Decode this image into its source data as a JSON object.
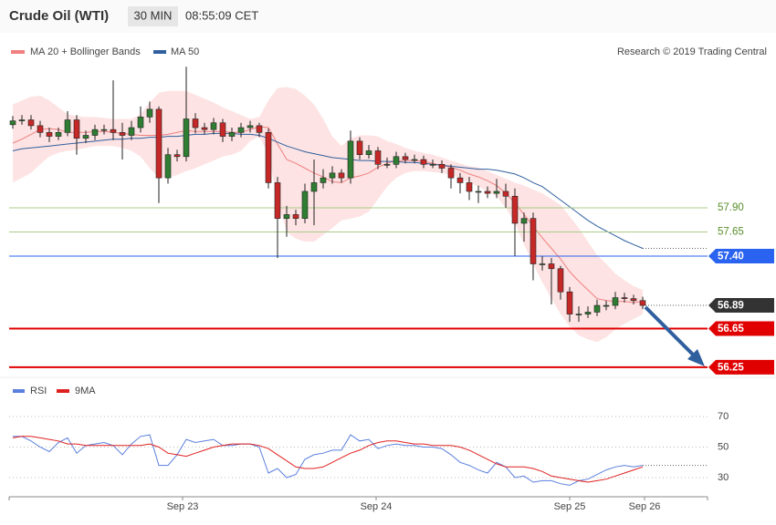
{
  "header": {
    "title": "Crude Oil (WTI)",
    "interval": "30 MIN",
    "time": "08:55:09 CET"
  },
  "chart_data": [
    {
      "type": "candlestick",
      "source": "Research © 2019 Trading Central",
      "up_color": "#2e7d32",
      "down_color": "#c62828",
      "xlim": [
        -0.4,
        76.1
      ],
      "ylim": [
        56.2,
        59.4
      ],
      "x": [
        0,
        1,
        2,
        3,
        4,
        5,
        6,
        7,
        8,
        9,
        10,
        11,
        12,
        13,
        14,
        15,
        16,
        17,
        18,
        19,
        20,
        21,
        22,
        23,
        24,
        25,
        26,
        27,
        28,
        29,
        30,
        31,
        32,
        33,
        34,
        35,
        36,
        37,
        38,
        39,
        40,
        41,
        42,
        43,
        44,
        45,
        46,
        47,
        48,
        49,
        50,
        51,
        52,
        53,
        54,
        55,
        56,
        57,
        58,
        59,
        60,
        61,
        62,
        63,
        64,
        65,
        66,
        67,
        68,
        69
      ],
      "open": [
        58.76,
        58.8,
        58.81,
        58.75,
        58.68,
        58.64,
        58.68,
        58.81,
        58.62,
        58.65,
        58.71,
        58.71,
        58.68,
        58.65,
        58.73,
        58.84,
        58.92,
        58.21,
        58.45,
        58.43,
        58.82,
        58.73,
        58.71,
        58.78,
        58.64,
        58.68,
        58.73,
        58.75,
        58.68,
        58.16,
        57.79,
        57.83,
        57.79,
        58.07,
        58.16,
        58.21,
        58.26,
        58.21,
        58.59,
        58.45,
        58.49,
        58.35,
        58.35,
        58.43,
        58.4,
        58.4,
        58.35,
        58.35,
        58.31,
        58.21,
        58.16,
        58.07,
        58.07,
        58.05,
        58.07,
        58.02,
        57.74,
        57.79,
        57.32,
        57.32,
        57.27,
        57.03,
        56.8,
        56.8,
        56.82,
        56.89,
        56.89,
        56.97,
        56.96,
        56.94
      ],
      "high": [
        58.85,
        58.86,
        58.86,
        58.8,
        58.73,
        58.73,
        58.9,
        58.86,
        58.7,
        58.76,
        58.76,
        59.22,
        58.78,
        58.8,
        58.95,
        59.0,
        58.95,
        58.52,
        58.5,
        59.36,
        58.88,
        58.78,
        58.83,
        58.82,
        58.73,
        58.78,
        58.8,
        58.78,
        58.72,
        58.22,
        57.92,
        57.88,
        58.15,
        58.4,
        58.3,
        58.33,
        58.3,
        58.7,
        58.63,
        58.55,
        58.53,
        58.42,
        58.48,
        58.47,
        58.45,
        58.44,
        58.4,
        58.39,
        58.35,
        58.26,
        58.22,
        58.13,
        58.12,
        58.2,
        58.15,
        58.1,
        57.85,
        57.85,
        57.4,
        57.38,
        57.3,
        57.08,
        56.88,
        56.88,
        56.95,
        56.94,
        57.03,
        57.02,
        57.0,
        56.98
      ],
      "low": [
        58.72,
        58.76,
        58.71,
        58.63,
        58.58,
        58.6,
        58.64,
        58.45,
        58.57,
        58.6,
        58.66,
        58.6,
        58.4,
        58.6,
        58.68,
        58.78,
        57.95,
        58.15,
        58.38,
        58.38,
        58.67,
        58.66,
        58.66,
        58.58,
        58.59,
        58.63,
        58.68,
        58.63,
        58.1,
        57.38,
        57.6,
        57.72,
        57.74,
        57.72,
        58.1,
        58.15,
        58.16,
        58.15,
        58.4,
        58.41,
        58.3,
        58.31,
        58.31,
        58.36,
        58.36,
        58.31,
        58.31,
        58.26,
        58.1,
        58.05,
        57.98,
        57.95,
        58.0,
        58.0,
        57.9,
        57.4,
        57.55,
        57.15,
        57.25,
        56.9,
        56.95,
        56.72,
        56.72,
        56.76,
        56.78,
        56.84,
        56.85,
        56.92,
        56.9,
        56.85
      ],
      "close": [
        58.8,
        58.81,
        58.75,
        58.68,
        58.64,
        58.68,
        58.81,
        58.62,
        58.65,
        58.71,
        58.71,
        58.68,
        58.65,
        58.73,
        58.84,
        58.92,
        58.21,
        58.45,
        58.43,
        58.82,
        58.73,
        58.71,
        58.78,
        58.64,
        58.68,
        58.73,
        58.75,
        58.68,
        58.16,
        57.79,
        57.83,
        57.79,
        58.07,
        58.16,
        58.21,
        58.26,
        58.21,
        58.59,
        58.45,
        58.49,
        58.35,
        58.35,
        58.43,
        58.4,
        58.4,
        58.35,
        58.35,
        58.31,
        58.21,
        58.16,
        58.07,
        58.07,
        58.05,
        58.07,
        58.02,
        57.74,
        57.79,
        57.32,
        57.32,
        57.27,
        57.03,
        56.8,
        56.8,
        56.82,
        56.89,
        56.89,
        56.97,
        56.96,
        56.94,
        56.89
      ],
      "series": [
        {
          "name": "MA 20 + Bollinger Bands",
          "color": "#f08080",
          "band_color": "#fde3e3",
          "values": [
            58.57,
            58.61,
            58.66,
            58.71,
            58.72,
            58.71,
            58.68,
            58.68,
            58.68,
            58.69,
            58.69,
            58.68,
            58.67,
            58.66,
            58.65,
            58.65,
            58.65,
            58.66,
            58.68,
            58.7,
            58.69,
            58.69,
            58.69,
            58.69,
            58.68,
            58.68,
            58.71,
            58.74,
            58.73,
            58.56,
            58.4,
            58.36,
            58.31,
            58.26,
            58.22,
            58.17,
            58.16,
            58.21,
            58.23,
            58.26,
            58.32,
            58.36,
            58.39,
            58.39,
            58.39,
            58.38,
            58.36,
            58.34,
            58.32,
            58.29,
            58.25,
            58.22,
            58.18,
            58.13,
            58.05,
            57.95,
            57.83,
            57.71,
            57.59,
            57.48,
            57.37,
            57.24,
            57.14,
            57.05,
            56.96,
            56.94,
            56.93,
            56.93,
            56.92,
            56.93
          ],
          "upper": [
            58.97,
            59.01,
            59.05,
            59.06,
            59.01,
            58.94,
            58.87,
            58.85,
            58.84,
            58.84,
            58.83,
            58.82,
            58.82,
            58.82,
            58.87,
            58.99,
            59.09,
            59.11,
            59.11,
            59.11,
            59.07,
            59.03,
            58.99,
            58.94,
            58.9,
            58.86,
            58.82,
            58.84,
            59.01,
            59.14,
            59.15,
            59.13,
            59.06,
            58.97,
            58.82,
            58.64,
            58.54,
            58.62,
            58.65,
            58.65,
            58.64,
            58.59,
            58.56,
            58.52,
            58.49,
            58.47,
            58.45,
            58.42,
            58.39,
            58.36,
            58.33,
            58.32,
            58.28,
            58.24,
            58.2,
            58.16,
            58.13,
            58.09,
            58.05,
            57.99,
            57.93,
            57.81,
            57.69,
            57.55,
            57.41,
            57.32,
            57.22,
            57.15,
            57.09,
            57.05
          ],
          "lower": [
            58.16,
            58.21,
            58.26,
            58.35,
            58.43,
            58.47,
            58.49,
            58.5,
            58.52,
            58.54,
            58.54,
            58.54,
            58.52,
            58.49,
            58.43,
            58.31,
            58.21,
            58.21,
            58.24,
            58.28,
            58.31,
            58.35,
            58.39,
            58.43,
            58.45,
            58.49,
            58.59,
            58.64,
            58.45,
            57.98,
            57.65,
            57.58,
            57.55,
            57.55,
            57.62,
            57.69,
            57.77,
            57.79,
            57.81,
            57.86,
            57.99,
            58.12,
            58.21,
            58.26,
            58.28,
            58.28,
            58.27,
            58.26,
            58.24,
            58.21,
            58.16,
            58.12,
            58.07,
            58.02,
            57.9,
            57.74,
            57.52,
            57.32,
            57.13,
            56.96,
            56.8,
            56.67,
            56.58,
            56.54,
            56.51,
            56.56,
            56.64,
            56.7,
            56.75,
            56.8
          ]
        },
        {
          "name": "MA 50",
          "color": "#2f5f9e",
          "values": [
            58.49,
            58.51,
            58.52,
            58.53,
            58.54,
            58.55,
            58.56,
            58.57,
            58.58,
            58.59,
            58.6,
            58.61,
            58.61,
            58.62,
            58.62,
            58.63,
            58.63,
            58.64,
            58.64,
            58.65,
            58.66,
            58.66,
            58.67,
            58.67,
            58.67,
            58.66,
            58.66,
            58.65,
            58.62,
            58.58,
            58.54,
            58.51,
            58.48,
            58.46,
            58.44,
            58.42,
            58.41,
            58.4,
            58.39,
            58.39,
            58.38,
            58.38,
            58.38,
            58.37,
            58.37,
            58.36,
            58.35,
            58.34,
            58.33,
            58.32,
            58.31,
            58.3,
            58.3,
            58.29,
            58.27,
            58.25,
            58.21,
            58.16,
            58.12,
            58.05,
            57.98,
            57.91,
            57.84,
            57.77,
            57.71,
            57.66,
            57.61,
            57.56,
            57.52,
            57.48
          ]
        }
      ],
      "levels": [
        {
          "value": 57.9,
          "label": "57.90",
          "color": "#a8cc88",
          "text_color": "#5b8e2d",
          "boxed": false,
          "line": "thin"
        },
        {
          "value": 57.65,
          "label": "57.65",
          "color": "#a8cc88",
          "text_color": "#5b8e2d",
          "boxed": false,
          "line": "thin"
        },
        {
          "value": 57.4,
          "label": "57.40",
          "color": "#2a63f0",
          "boxed": true,
          "line": "thin"
        },
        {
          "value": 56.89,
          "label": "56.89",
          "color": "#333333",
          "boxed": true,
          "line": "dotted"
        },
        {
          "value": 56.65,
          "label": "56.65",
          "color": "#e00000",
          "boxed": true,
          "line": "thick"
        },
        {
          "value": 56.25,
          "label": "56.25",
          "color": "#e00000",
          "boxed": true,
          "line": "thick"
        }
      ]
    },
    {
      "type": "line",
      "xlim": [
        -0.4,
        76.1
      ],
      "ylim": [
        20,
        80
      ],
      "yticks": [
        30,
        50,
        70
      ],
      "grid": true,
      "xticks": [
        {
          "value": 18.6,
          "label": "Sep 23"
        },
        {
          "value": 39.8,
          "label": "Sep 24"
        },
        {
          "value": 61,
          "label": "Sep 25"
        },
        {
          "value": 69.2,
          "label": "Sep 26"
        }
      ],
      "x": [
        0,
        1,
        2,
        3,
        4,
        5,
        6,
        7,
        8,
        9,
        10,
        11,
        12,
        13,
        14,
        15,
        16,
        17,
        18,
        19,
        20,
        21,
        22,
        23,
        24,
        25,
        26,
        27,
        28,
        29,
        30,
        31,
        32,
        33,
        34,
        35,
        36,
        37,
        38,
        39,
        40,
        41,
        42,
        43,
        44,
        45,
        46,
        47,
        48,
        49,
        50,
        51,
        52,
        53,
        54,
        55,
        56,
        57,
        58,
        59,
        60,
        61,
        62,
        63,
        64,
        65,
        66,
        67,
        68,
        69
      ],
      "series": [
        {
          "name": "RSI",
          "color": "#5b7fde",
          "values": [
            57,
            57,
            54,
            50,
            47,
            53,
            56,
            46,
            51,
            52,
            53,
            51,
            45,
            52,
            57,
            58,
            38,
            38,
            45,
            55,
            53,
            54,
            55,
            51,
            51,
            52,
            52,
            50,
            33,
            36,
            30,
            32,
            42,
            45,
            46,
            48,
            48,
            58,
            54,
            55,
            49,
            51,
            52,
            51,
            51,
            50,
            50,
            49,
            45,
            40,
            38,
            35,
            33,
            40,
            37,
            30,
            31,
            27,
            28,
            28,
            26,
            25,
            28,
            29,
            32,
            35,
            37,
            38,
            37,
            38
          ]
        },
        {
          "name": "9MA",
          "color": "#e02020",
          "values": [
            56,
            57,
            57,
            56,
            55,
            54,
            52,
            52,
            51,
            51,
            51,
            51,
            51,
            51,
            51,
            52,
            50,
            46,
            45,
            44,
            46,
            48,
            50,
            51,
            52,
            52,
            52,
            51,
            49,
            45,
            41,
            37,
            36,
            36,
            37,
            40,
            43,
            46,
            48,
            51,
            53,
            54,
            54,
            53,
            52,
            52,
            51,
            51,
            51,
            50,
            48,
            45,
            42,
            39,
            37,
            37,
            37,
            36,
            34,
            31,
            30,
            29,
            28,
            27,
            28,
            29,
            31,
            33,
            35,
            37
          ]
        }
      ]
    }
  ]
}
